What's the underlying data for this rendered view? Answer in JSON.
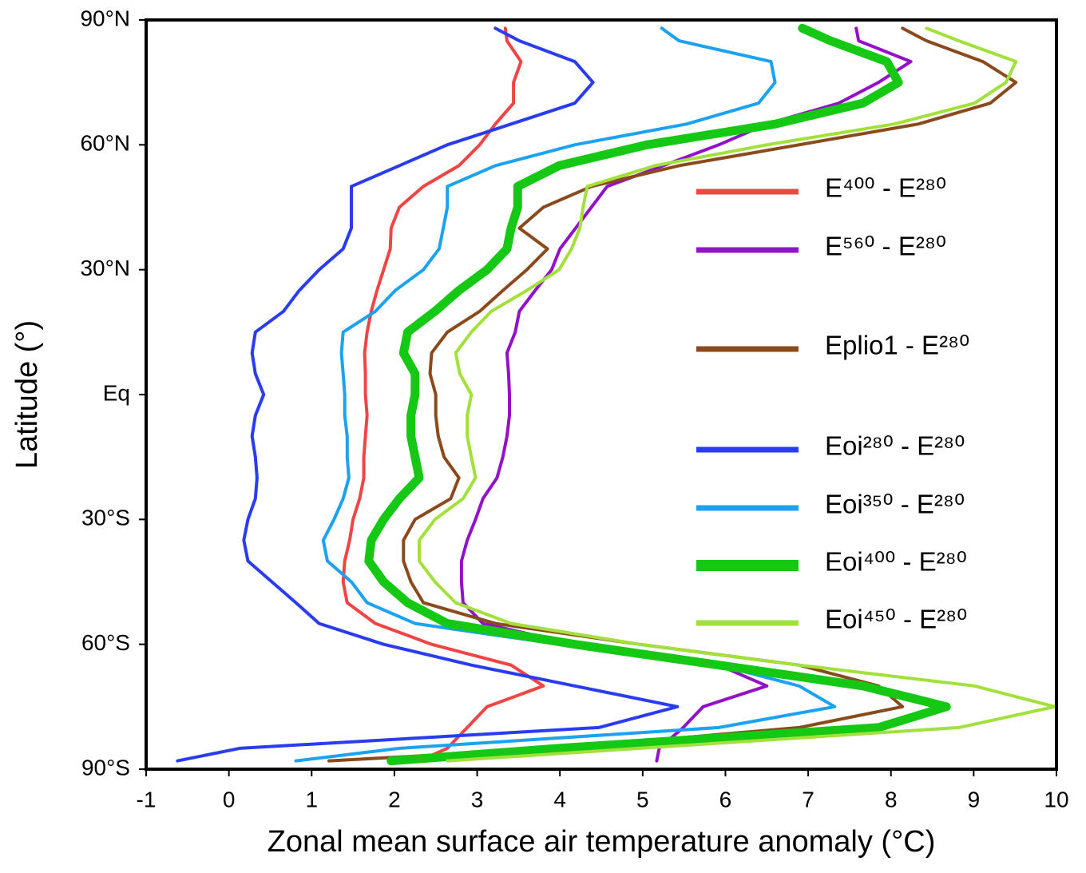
{
  "chart_data": {
    "type": "line",
    "xlabel": "Zonal mean surface air temperature anomaly (°C)",
    "ylabel": "Latitude (°)",
    "xlim": [
      -1,
      10
    ],
    "xticks": [
      -1,
      0,
      1,
      2,
      3,
      4,
      5,
      6,
      7,
      8,
      9,
      10
    ],
    "ylim": [
      -90,
      90
    ],
    "yticks": [
      {
        "value": 90,
        "label": "90°N"
      },
      {
        "value": 60,
        "label": "60°N"
      },
      {
        "value": 30,
        "label": "30°N"
      },
      {
        "value": 0,
        "label": "Eq"
      },
      {
        "value": -30,
        "label": "30°S"
      },
      {
        "value": -60,
        "label": "60°S"
      },
      {
        "value": -90,
        "label": "90°S"
      }
    ],
    "y": [
      88,
      85,
      80,
      75,
      70,
      65,
      60,
      55,
      50,
      45,
      40,
      35,
      30,
      25,
      20,
      15,
      10,
      5,
      0,
      -5,
      -10,
      -15,
      -20,
      -25,
      -30,
      -35,
      -40,
      -45,
      -50,
      -55,
      -60,
      -65,
      -70,
      -75,
      -80,
      -85,
      -88
    ],
    "series": [
      {
        "name": "E⁴⁰⁰ - E²⁸⁰",
        "color": "#ef4545",
        "linewidth": 4,
        "values": [
          3.34,
          3.36,
          3.53,
          3.44,
          3.44,
          3.22,
          3.03,
          2.78,
          2.35,
          2.06,
          1.96,
          1.95,
          1.87,
          1.79,
          1.72,
          1.67,
          1.64,
          1.65,
          1.65,
          1.67,
          1.65,
          1.63,
          1.63,
          1.58,
          1.5,
          1.46,
          1.4,
          1.38,
          1.43,
          1.77,
          2.45,
          3.41,
          3.8,
          3.12,
          2.88,
          2.64,
          2.3
        ]
      },
      {
        "name": "E⁵⁶⁰ - E²⁸⁰",
        "color": "#9212c8",
        "linewidth": 4,
        "values": [
          7.58,
          7.61,
          8.24,
          7.85,
          7.37,
          6.5,
          5.92,
          5.25,
          4.57,
          4.38,
          4.19,
          4.0,
          3.9,
          3.7,
          3.51,
          3.46,
          3.36,
          3.38,
          3.39,
          3.39,
          3.36,
          3.31,
          3.24,
          3.07,
          2.98,
          2.88,
          2.81,
          2.81,
          2.83,
          3.07,
          4.18,
          5.92,
          6.5,
          5.73,
          5.49,
          5.2,
          5.17
        ]
      },
      {
        "name": "Eplio1 - E²⁸⁰",
        "color": "#8b4a1c",
        "linewidth": 4,
        "values": [
          8.14,
          8.43,
          9.11,
          9.51,
          9.2,
          8.33,
          6.89,
          5.44,
          4.38,
          3.8,
          3.51,
          3.85,
          3.6,
          3.31,
          3.03,
          2.64,
          2.45,
          2.43,
          2.5,
          2.5,
          2.53,
          2.6,
          2.78,
          2.68,
          2.25,
          2.11,
          2.11,
          2.2,
          2.35,
          3.22,
          4.96,
          6.89,
          7.85,
          8.14,
          6.89,
          3.99,
          1.21
        ]
      },
      {
        "name": "Eoi²⁸⁰ - E²⁸⁰",
        "color": "#2a3cf0",
        "linewidth": 4,
        "values": [
          3.22,
          3.51,
          4.18,
          4.4,
          4.18,
          3.41,
          2.64,
          2.06,
          1.48,
          1.48,
          1.48,
          1.38,
          1.09,
          0.85,
          0.66,
          0.32,
          0.28,
          0.32,
          0.42,
          0.32,
          0.28,
          0.32,
          0.34,
          0.32,
          0.23,
          0.18,
          0.23,
          0.52,
          0.81,
          1.09,
          1.87,
          2.93,
          4.18,
          5.42,
          4.47,
          0.13,
          -0.62
        ]
      },
      {
        "name": "Eoi³⁵⁰ - E²⁸⁰",
        "color": "#1ca2f0",
        "linewidth": 4,
        "values": [
          5.23,
          5.44,
          6.55,
          6.6,
          6.4,
          5.53,
          4.18,
          3.22,
          2.64,
          2.64,
          2.59,
          2.54,
          2.35,
          2.01,
          1.77,
          1.38,
          1.36,
          1.38,
          1.4,
          1.4,
          1.43,
          1.43,
          1.45,
          1.38,
          1.27,
          1.14,
          1.19,
          1.48,
          1.67,
          2.25,
          3.99,
          5.92,
          6.89,
          7.32,
          5.92,
          2.06,
          0.81
        ]
      },
      {
        "name": "Eoi⁴⁰⁰ - E²⁸⁰",
        "color": "#14c814",
        "linewidth": 11,
        "values": [
          6.93,
          7.27,
          7.95,
          8.09,
          7.66,
          6.6,
          5.05,
          3.99,
          3.49,
          3.49,
          3.41,
          3.36,
          3.12,
          2.78,
          2.49,
          2.16,
          2.11,
          2.25,
          2.25,
          2.2,
          2.2,
          2.25,
          2.3,
          2.06,
          1.87,
          1.72,
          1.69,
          1.87,
          2.16,
          2.64,
          4.18,
          5.92,
          7.66,
          8.67,
          7.85,
          3.99,
          1.96
        ]
      },
      {
        "name": "Eoi⁴⁵⁰ - E²⁸⁰",
        "color": "#a2e03c",
        "linewidth": 4,
        "values": [
          8.43,
          8.82,
          9.51,
          9.39,
          9.01,
          8.04,
          6.5,
          5.15,
          4.33,
          4.28,
          4.24,
          4.14,
          3.99,
          3.6,
          3.17,
          2.93,
          2.74,
          2.79,
          2.93,
          2.88,
          2.88,
          2.93,
          2.98,
          2.83,
          2.49,
          2.3,
          2.3,
          2.49,
          2.74,
          3.41,
          4.96,
          6.89,
          9.01,
          9.98,
          8.82,
          4.96,
          2.64
        ]
      }
    ]
  }
}
